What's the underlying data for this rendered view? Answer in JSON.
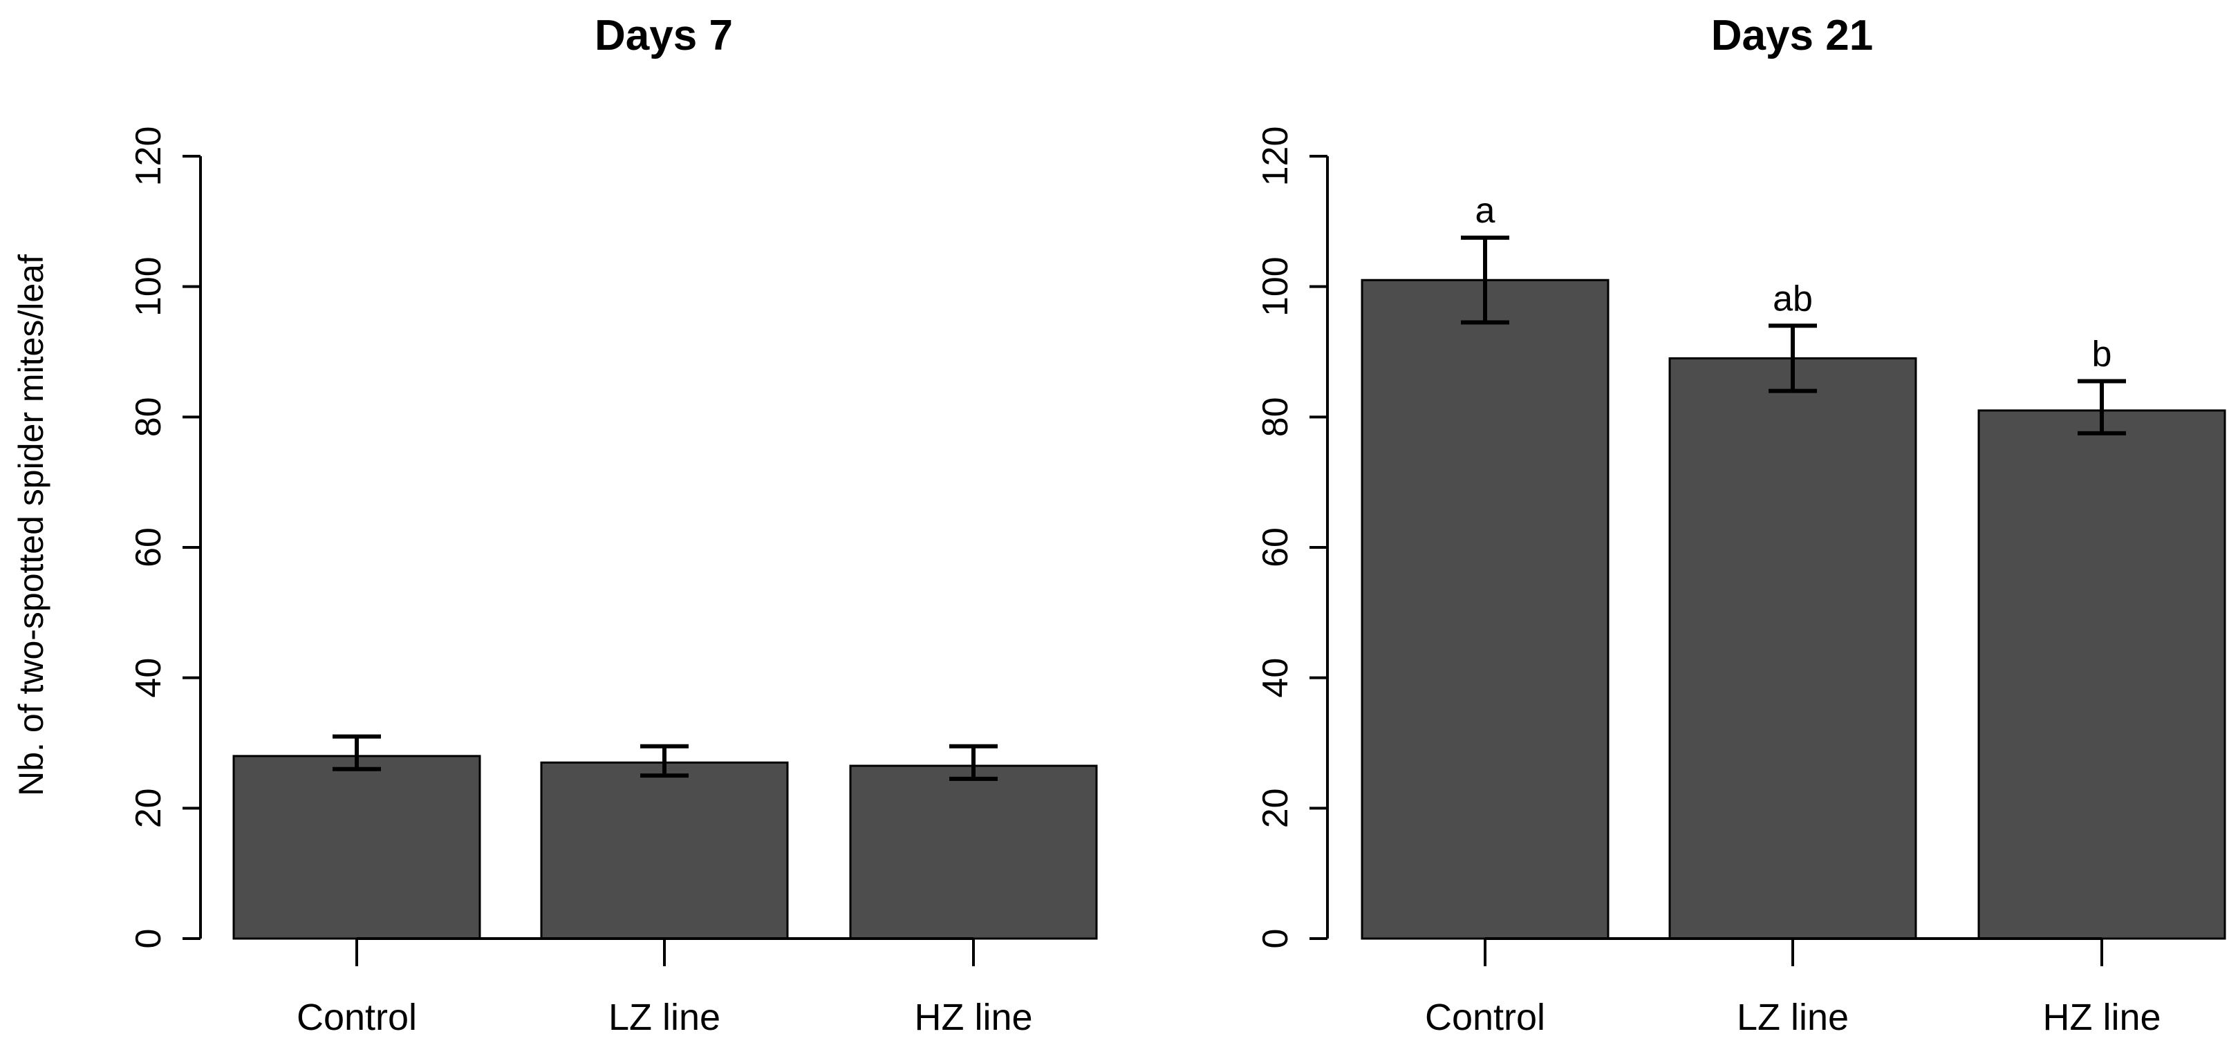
{
  "chart_data": [
    {
      "type": "bar",
      "title": "Days 7",
      "ylabel": "Nb. of two-spotted spider mites/leaf",
      "xlabel": "",
      "categories": [
        "Control",
        "LZ line",
        "HZ line"
      ],
      "values": [
        28,
        27,
        26.5
      ],
      "error_low": [
        26,
        25,
        24.5
      ],
      "error_high": [
        31,
        29.5,
        29.5
      ],
      "letters": [
        "",
        "",
        ""
      ],
      "ylim": [
        0,
        120
      ],
      "yticks": [
        0,
        20,
        40,
        60,
        80,
        100,
        120
      ],
      "bar_color": "#4d4d4d"
    },
    {
      "type": "bar",
      "title": "Days 21",
      "ylabel": "",
      "xlabel": "",
      "categories": [
        "Control",
        "LZ line",
        "HZ line"
      ],
      "values": [
        101,
        89,
        81
      ],
      "error_low": [
        94.5,
        84,
        77.5
      ],
      "error_high": [
        107.5,
        94,
        85.5
      ],
      "letters": [
        "a",
        "ab",
        "b"
      ],
      "ylim": [
        0,
        120
      ],
      "yticks": [
        0,
        20,
        40,
        60,
        80,
        100,
        120
      ],
      "bar_color": "#4d4d4d"
    }
  ]
}
